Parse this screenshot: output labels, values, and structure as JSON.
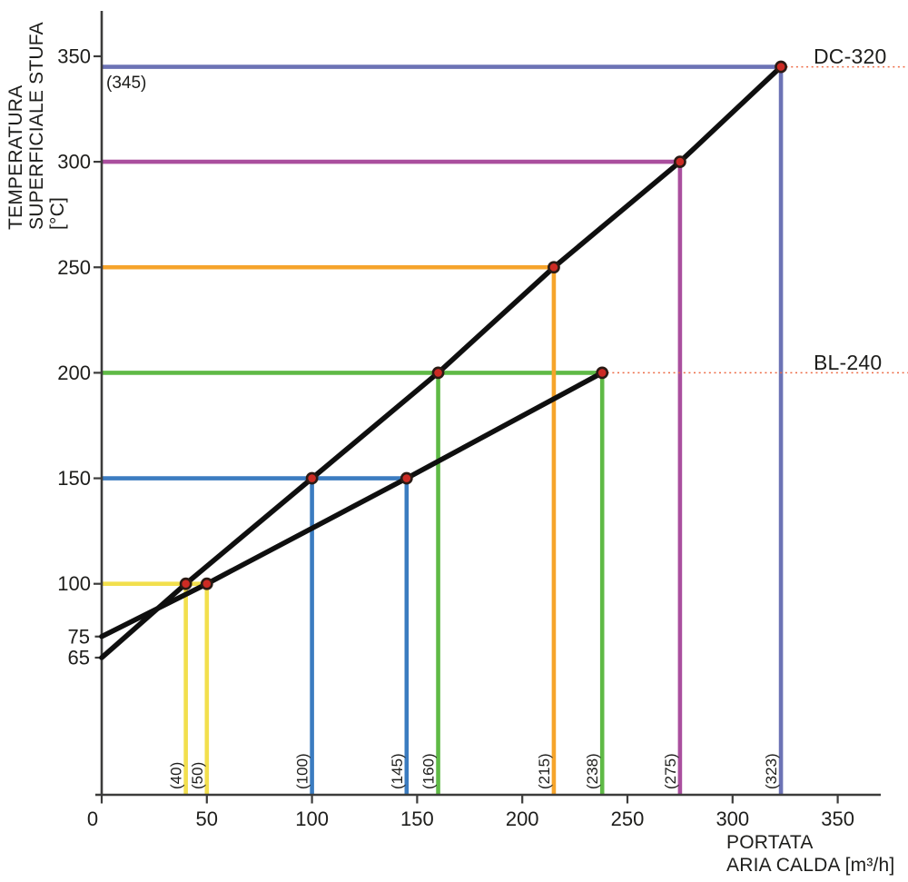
{
  "chart_data": {
    "type": "line",
    "title": "",
    "xlabel": "PORTATA\nARIA CALDA [m³/h]",
    "ylabel": "TEMPERATURA\nSUPERFICIALE STUFA [°C]",
    "xlim": [
      0,
      375
    ],
    "ylim": [
      0,
      372
    ],
    "grid": false,
    "legend_position": "right-callouts",
    "axis_color": "#3C3C3B",
    "text_color": "#1D1D1B",
    "x_ticks": [
      {
        "v": 0,
        "label": "0",
        "dx": -10
      },
      {
        "v": 50,
        "label": "50"
      },
      {
        "v": 100,
        "label": "100"
      },
      {
        "v": 150,
        "label": "150"
      },
      {
        "v": 200,
        "label": "200"
      },
      {
        "v": 250,
        "label": "250"
      },
      {
        "v": 300,
        "label": "300"
      },
      {
        "v": 350,
        "label": "350"
      }
    ],
    "y_ticks": [
      {
        "v": 100,
        "label": "100"
      },
      {
        "v": 150,
        "label": "150"
      },
      {
        "v": 200,
        "label": "200"
      },
      {
        "v": 250,
        "label": "250"
      },
      {
        "v": 300,
        "label": "300"
      },
      {
        "v": 350,
        "label": "350"
      }
    ],
    "y_intercept_ticks": [
      {
        "v": 75,
        "label": "75"
      },
      {
        "v": 65,
        "label": "65"
      }
    ],
    "series": [
      {
        "name": "DC-320",
        "color": "#0F0F0F",
        "points": [
          [
            0,
            65
          ],
          [
            40,
            100
          ],
          [
            100,
            150
          ],
          [
            160,
            200
          ],
          [
            215,
            250
          ],
          [
            275,
            300
          ],
          [
            323,
            345
          ]
        ],
        "markers": [
          [
            40,
            100
          ],
          [
            100,
            150
          ],
          [
            160,
            200
          ],
          [
            215,
            250
          ],
          [
            275,
            300
          ],
          [
            323,
            345
          ]
        ]
      },
      {
        "name": "BL-240",
        "color": "#0F0F0F",
        "points": [
          [
            0,
            75
          ],
          [
            50,
            100
          ],
          [
            145,
            150
          ],
          [
            238,
            200
          ]
        ],
        "markers": [
          [
            50,
            100
          ],
          [
            145,
            150
          ],
          [
            238,
            200
          ]
        ]
      }
    ],
    "guides": [
      {
        "temp": 100,
        "color": "#F2DF4D",
        "x_end": 50,
        "x_drops": [
          40,
          50
        ],
        "drop_labels": [
          "(40)",
          "(50)"
        ]
      },
      {
        "temp": 150,
        "color": "#3B7CC0",
        "x_end": 145,
        "x_drops": [
          100,
          145
        ],
        "drop_labels": [
          "(100)",
          "(145)"
        ]
      },
      {
        "temp": 200,
        "color": "#5FBA46",
        "x_end": 238,
        "x_drops": [
          160,
          238
        ],
        "drop_labels": [
          "(160)",
          "(238)"
        ]
      },
      {
        "temp": 250,
        "color": "#F6A42B",
        "x_end": 215,
        "x_drops": [
          215
        ],
        "drop_labels": [
          "(215)"
        ]
      },
      {
        "temp": 300,
        "color": "#AA4F9E",
        "x_end": 275,
        "x_drops": [
          275
        ],
        "drop_labels": [
          "(275)"
        ]
      },
      {
        "temp": 345,
        "color": "#6C73B5",
        "x_end": 323,
        "x_drops": [
          323
        ],
        "drop_labels": [
          "(323)"
        ],
        "annotation": "(345)"
      }
    ],
    "callouts": [
      {
        "label": "DC-320",
        "temp": 345,
        "x_from": 323
      },
      {
        "label": "BL-240",
        "temp": 200,
        "x_from": 238
      }
    ],
    "callout_style": {
      "color": "#ED6B45"
    },
    "marker_style": {
      "fill": "#CC2B24",
      "stroke": "#2A1A14"
    }
  }
}
